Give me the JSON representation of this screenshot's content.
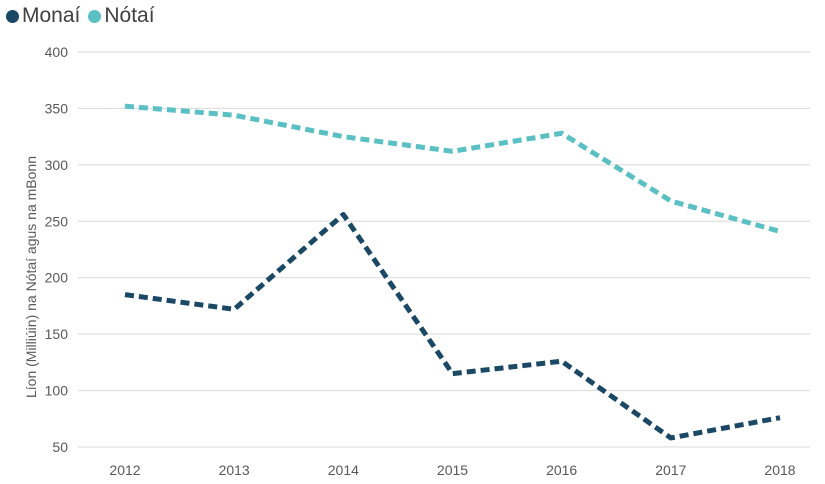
{
  "chart_data": {
    "type": "line",
    "title": "",
    "xlabel": "",
    "ylabel": "Líon (Milliúin) na Nótaí agus na mBonn",
    "x": [
      "2012",
      "2013",
      "2014",
      "2015",
      "2016",
      "2017",
      "2018"
    ],
    "ylim": [
      50,
      400
    ],
    "yticks": [
      50,
      100,
      150,
      200,
      250,
      300,
      350,
      400
    ],
    "grid": true,
    "legend_position": "top-left",
    "series": [
      {
        "name": "Monaí",
        "color": "#1b4965",
        "line_style": "dashed",
        "values": [
          185,
          172,
          256,
          115,
          126,
          58,
          76
        ]
      },
      {
        "name": "Nótaí",
        "color": "#5bc0c4",
        "line_style": "dashed",
        "values": [
          352,
          344,
          325,
          312,
          328,
          268,
          241
        ]
      }
    ]
  }
}
